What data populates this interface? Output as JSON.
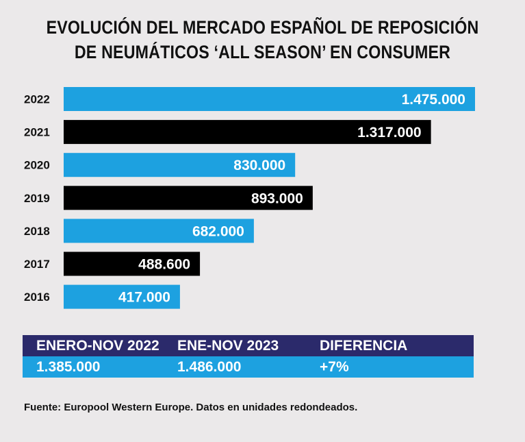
{
  "title_line1": "EVOLUCIÓN DEL MERCADO ESPAÑOL DE REPOSICIÓN",
  "title_line2": "DE NEUMÁTICOS ‘ALL SEASON’ EN CONSUMER",
  "chart_data": {
    "type": "bar",
    "orientation": "horizontal",
    "title": "EVOLUCIÓN DEL MERCADO ESPAÑOL DE REPOSICIÓN DE NEUMÁTICOS ‘ALL SEASON’ EN CONSUMER",
    "categories": [
      "2022",
      "2021",
      "2020",
      "2019",
      "2018",
      "2017",
      "2016"
    ],
    "values": [
      1475000,
      1317000,
      830000,
      893000,
      682000,
      488600,
      417000
    ],
    "labels": [
      "1.475.000",
      "1.317.000",
      "830.000",
      "893.000",
      "682.000",
      "488.600",
      "417.000"
    ],
    "bar_colors": [
      "#1da1e0",
      "#000000",
      "#1da1e0",
      "#000000",
      "#1da1e0",
      "#000000",
      "#1da1e0"
    ],
    "xlim": [
      0,
      1475000
    ],
    "grid": false
  },
  "summary": {
    "headers": [
      "ENERO-NOV 2022",
      "ENE-NOV 2023",
      "DIFERENCIA"
    ],
    "values": [
      "1.385.000",
      "1.486.000",
      "+7%"
    ],
    "header_color": "#2b2a6b",
    "values_color": "#1da1e0"
  },
  "source": "Fuente: Europool Western Europe. Datos en unidades redondeados."
}
